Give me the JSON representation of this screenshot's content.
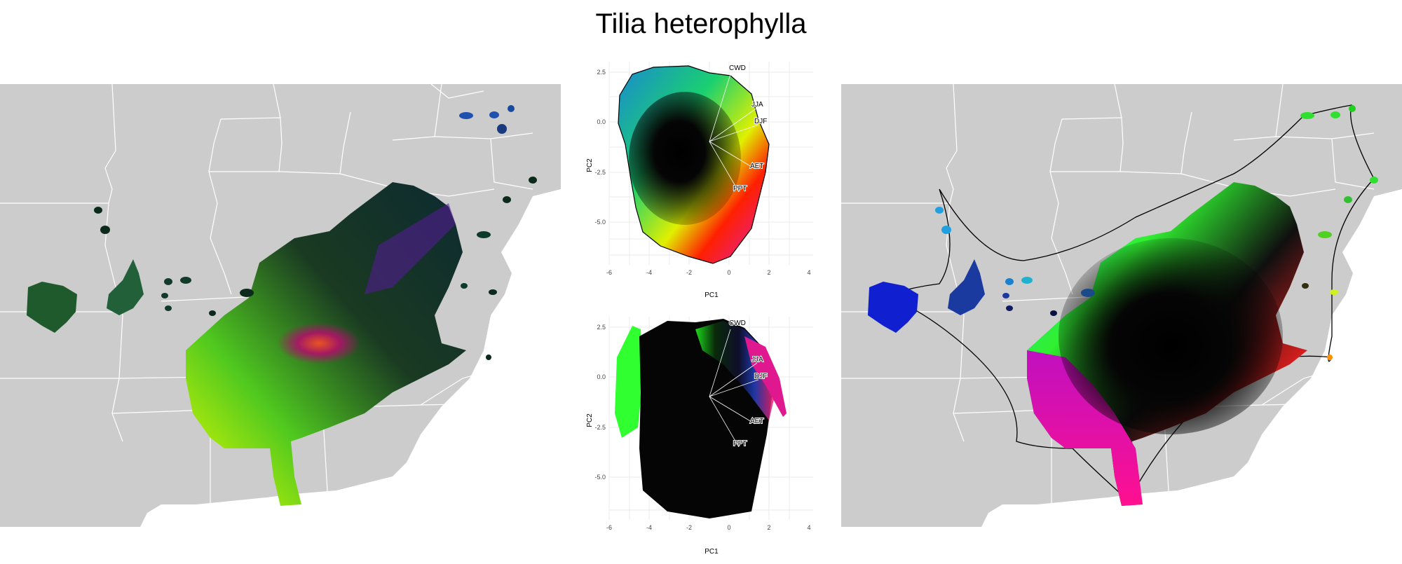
{
  "title": "Tilia heterophylla",
  "pca_plots": [
    {
      "xlabel": "PC1",
      "ylabel": "PC2",
      "x_ticks": [
        "-6",
        "-4",
        "-2",
        "0",
        "2",
        "4"
      ],
      "y_ticks": [
        "2.5",
        "0.0",
        "-2.5",
        "-5.0"
      ],
      "vectors": [
        "CWD",
        "JJA",
        "DJF",
        "AET",
        "PPT"
      ]
    },
    {
      "xlabel": "PC1",
      "ylabel": "PC2",
      "x_ticks": [
        "-6",
        "-4",
        "-2",
        "0",
        "2",
        "4"
      ],
      "y_ticks": [
        "2.5",
        "0.0",
        "-2.5",
        "-5.0"
      ],
      "vectors": [
        "CWD",
        "JJA",
        "DJF",
        "AET",
        "PPT"
      ]
    }
  ],
  "colors": {
    "land": "#cccccc",
    "borders": "#ffffff",
    "background": "#ffffff",
    "grid": "#ebebeb"
  }
}
